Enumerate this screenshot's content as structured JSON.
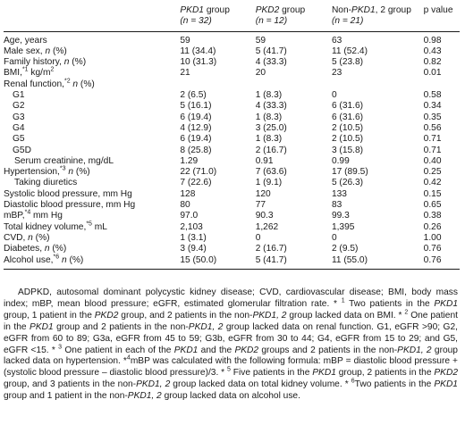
{
  "headers": {
    "col0": "",
    "col1": {
      "name": "PKD1",
      "suffix": " group",
      "n": "(n = 32)"
    },
    "col2": {
      "name": "PKD2",
      "suffix": " group",
      "n": "(n = 12)"
    },
    "col3": {
      "prefix": "Non-",
      "name": "PKD1",
      "suffix": ", 2 group",
      "n": "(n = 21)"
    },
    "col4": "p value"
  },
  "rows": [
    {
      "label": "Age, years",
      "v1": "59",
      "v2": "59",
      "v3": "63",
      "p": "0.98"
    },
    {
      "label": "Male sex, ",
      "label_it": "n",
      "label_tail": " (%)",
      "v1": "11 (34.4)",
      "v2": "5 (41.7)",
      "v3": "11 (52.4)",
      "p": "0.43"
    },
    {
      "label": "Family history, ",
      "label_it": "n",
      "label_tail": " (%)",
      "v1": "10 (31.3)",
      "v2": "4 (33.3)",
      "v3": "5 (23.8)",
      "p": "0.82"
    },
    {
      "label": "BMI,",
      "sup": "*1",
      "label_tail": " kg/m",
      "sup2": "2",
      "v1": "21",
      "v2": "20",
      "v3": "23",
      "p": "0.01"
    },
    {
      "label": "Renal function,",
      "sup": "*2",
      "label_it": " n",
      "label_tail": " (%)",
      "v1": "",
      "v2": "",
      "v3": "",
      "p": ""
    },
    {
      "label": "G1",
      "v1": "2 (6.5)",
      "v2": "1 (8.3)",
      "v3": "0",
      "p": "0.58"
    },
    {
      "label": "G2",
      "v1": "5 (16.1)",
      "v2": "4 (33.3)",
      "v3": "6 (31.6)",
      "p": "0.34"
    },
    {
      "label": "G3",
      "v1": "6 (19.4)",
      "v2": "1 (8.3)",
      "v3": "6 (31.6)",
      "p": "0.35"
    },
    {
      "label": "G4",
      "v1": "4 (12.9)",
      "v2": "3 (25.0)",
      "v3": "2 (10.5)",
      "p": "0.56"
    },
    {
      "label": "G5",
      "v1": "6 (19.4)",
      "v2": "1 (8.3)",
      "v3": "2 (10.5)",
      "p": "0.71"
    },
    {
      "label": "G5D",
      "v1": "8 (25.8)",
      "v2": "2 (16.7)",
      "v3": "3 (15.8)",
      "p": "0.71"
    },
    {
      "label": "Serum creatinine, mg/dL",
      "v1": "1.29",
      "v2": "0.91",
      "v3": "0.99",
      "p": "0.40"
    },
    {
      "label": "Hypertension,",
      "sup": "*3",
      "label_it": " n",
      "label_tail": " (%)",
      "v1": "22 (71.0)",
      "v2": "7 (63.6)",
      "v3": "17 (89.5)",
      "p": "0.25"
    },
    {
      "label": "Taking diuretics",
      "v1": "7 (22.6)",
      "v2": "1 (9.1)",
      "v3": "5 (26.3)",
      "p": "0.42"
    },
    {
      "label": "Systolic blood pressure, mm Hg",
      "v1": "128",
      "v2": "120",
      "v3": "133",
      "p": "0.15"
    },
    {
      "label": "Diastolic blood pressure, mm Hg",
      "v1": "80",
      "v2": "77",
      "v3": "83",
      "p": "0.65"
    },
    {
      "label": "mBP,",
      "sup": "*4",
      "label_tail": " mm Hg",
      "v1": "97.0",
      "v2": "90.3",
      "v3": "99.3",
      "p": "0.38"
    },
    {
      "label": "Total kidney volume,",
      "sup": "*5",
      "label_tail": " mL",
      "v1": "2,103",
      "v2": "1,262",
      "v3": "1,395",
      "p": "0.26"
    },
    {
      "label": "CVD, ",
      "label_it": "n",
      "label_tail": " (%)",
      "v1": "1 (3.1)",
      "v2": "0",
      "v3": "0",
      "p": "1.00"
    },
    {
      "label": "Diabetes, ",
      "label_it": "n",
      "label_tail": " (%)",
      "v1": "3 (9.4)",
      "v2": "2 (16.7)",
      "v3": "2 (9.5)",
      "p": "0.76"
    },
    {
      "label": "Alcohol use,",
      "sup": "*6",
      "label_it": " n",
      "label_tail": " (%)",
      "v1": "15 (50.0)",
      "v2": "5 (41.7)",
      "v3": "11 (55.0)",
      "p": "0.76"
    }
  ],
  "footnote": {
    "abbrev": "ADPKD, autosomal dominant polycystic kidney disease; CVD, cardiovascular disease; BMI, body mass index; mBP, mean blood pressure; eGFR, estimated glomerular filtration rate.",
    "n1a": " * ",
    "n1sup": "1",
    "n1b": " Two patients in the ",
    "n1c": "PKD1",
    "n1d": " group, 1 patient in the ",
    "n1e": "PKD2",
    "n1f": " group, and 2 patients in the non-",
    "n1g": "PKD1, 2",
    "n1h": " group lacked data on BMI.",
    "n2a": " * ",
    "n2sup": "2",
    "n2b": " One patient in the ",
    "n2c": "PKD1",
    "n2d": " group and 2 patients in the non-",
    "n2e": "PKD1, 2",
    "n2f": " group lacked data on renal function. G1, eGFR >90; G2, eGFR from 60 to 89; G3a, eGFR from 45 to 59; G3b, eGFR from 30 to 44; G4, eGFR from 15 to 29; and G5, eGFR <15.",
    "n3a": " * ",
    "n3sup": "3",
    "n3b": " One patient in each of the ",
    "n3c": "PKD1",
    "n3d": " and the ",
    "n3e": "PKD2",
    "n3f": " groups and 2 patients in the non-",
    "n3g": "PKD1, 2",
    "n3h": " group lacked data on hypertension.",
    "n4a": " *",
    "n4sup": "4",
    "n4b": "mBP was calculated with the following formula: mBP = diastolic blood pressure + (systolic blood pressure – diastolic blood pressure)/3.",
    "n5a": " * ",
    "n5sup": "5",
    "n5b": " Five patients in the ",
    "n5c": "PKD1",
    "n5d": " group, 2 patients in the ",
    "n5e": "PKD2",
    "n5f": " group, and 3 patients in the non-",
    "n5g": "PKD1, 2",
    "n5h": " group lacked data on total kidney volume.",
    "n6a": " * ",
    "n6sup": "6",
    "n6b": "Two patients in the ",
    "n6c": "PKD1",
    "n6d": " group and 1 patient in the non-",
    "n6e": "PKD1, 2",
    "n6f": " group lacked data on alcohol use."
  }
}
